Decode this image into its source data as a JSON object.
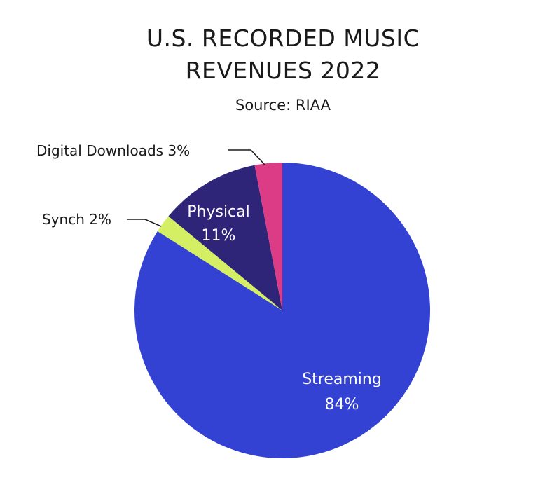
{
  "chart_data": {
    "type": "pie",
    "title_lines": [
      "U.S. RECORDED MUSIC",
      "REVENUES 2022"
    ],
    "subtitle": "Source: RIAA",
    "slices": [
      {
        "label": "Streaming",
        "value": 84,
        "display": "84%",
        "color": "#3442d4",
        "label_position": "inside"
      },
      {
        "label": "Synch",
        "value": 2,
        "display": "Synch 2%",
        "color": "#d5ef64",
        "label_position": "outside"
      },
      {
        "label": "Physical",
        "value": 11,
        "display": "11%",
        "color": "#2f2578",
        "label_position": "inside"
      },
      {
        "label": "Digital Downloads",
        "value": 3,
        "display": "Digital Downloads 3%",
        "color": "#dc3b86",
        "label_position": "outside"
      }
    ],
    "start_angle": "12 o'clock",
    "direction": "clockwise",
    "legend": "none"
  }
}
